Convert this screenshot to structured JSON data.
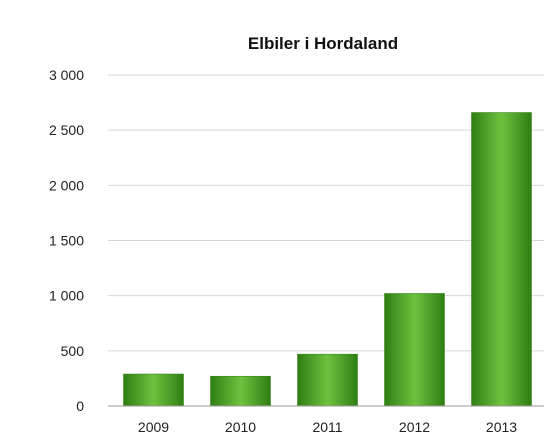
{
  "chart_data": {
    "type": "bar",
    "title": "Elbiler i Hordaland",
    "xlabel": "",
    "ylabel": "",
    "categories": [
      "2009",
      "2010",
      "2011",
      "2012",
      "2013"
    ],
    "values": [
      290,
      270,
      470,
      1020,
      2660
    ],
    "ylim": [
      0,
      3000
    ],
    "yticks": [
      0,
      500,
      1000,
      1500,
      2000,
      2500,
      3000
    ],
    "ytick_labels": [
      "0",
      "500",
      "1 000",
      "1 500",
      "2 000",
      "2 500",
      "3 000"
    ],
    "grid": true,
    "legend": "none",
    "bar_color": "#3f9a1f",
    "bar_color_light": "#6fc23f",
    "bar_color_dark": "#2e7e13"
  }
}
